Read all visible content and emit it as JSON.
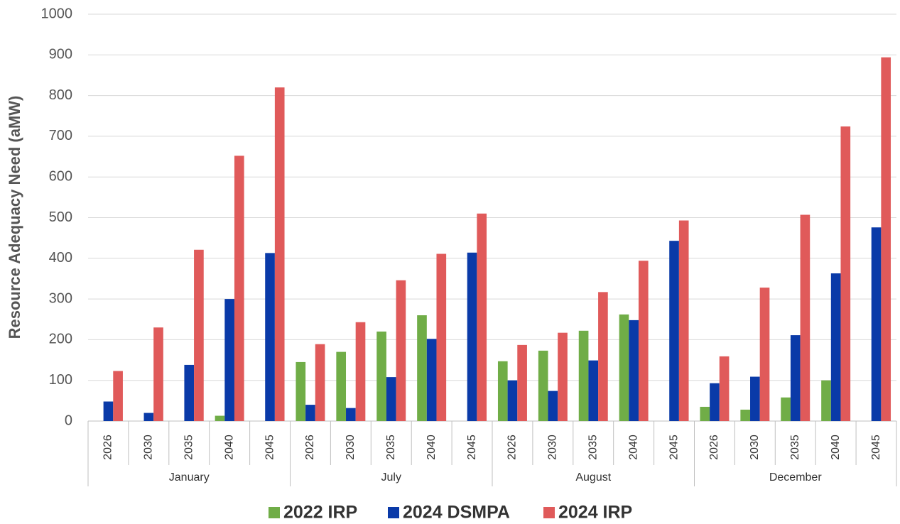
{
  "chart_data": {
    "type": "bar",
    "y_label": "Resource Adequacy Need (aMW)",
    "groups": [
      {
        "name": "January",
        "categories": [
          "2026",
          "2030",
          "2035",
          "2040",
          "2045"
        ]
      },
      {
        "name": "July",
        "categories": [
          "2026",
          "2030",
          "2035",
          "2040",
          "2045"
        ]
      },
      {
        "name": "August",
        "categories": [
          "2026",
          "2030",
          "2035",
          "2040",
          "2045"
        ]
      },
      {
        "name": "December",
        "categories": [
          "2026",
          "2030",
          "2035",
          "2040",
          "2045"
        ]
      }
    ],
    "series": [
      {
        "name": "2022 IRP",
        "color": "#70ad47",
        "values": [
          0,
          0,
          0,
          13,
          0,
          145,
          170,
          220,
          260,
          0,
          147,
          173,
          222,
          262,
          0,
          35,
          28,
          58,
          100,
          0
        ]
      },
      {
        "name": "2024 DSMPA",
        "color": "#0a3aa8",
        "values": [
          48,
          20,
          138,
          300,
          413,
          40,
          32,
          108,
          202,
          414,
          100,
          74,
          149,
          248,
          443,
          93,
          109,
          211,
          363,
          476
        ]
      },
      {
        "name": "2024 IRP",
        "color": "#e05a5a",
        "values": [
          123,
          230,
          421,
          652,
          820,
          189,
          243,
          346,
          411,
          510,
          187,
          217,
          317,
          394,
          493,
          159,
          328,
          507,
          724,
          894
        ]
      }
    ],
    "ylim": [
      0,
      1000
    ],
    "yticks": [
      0,
      100,
      200,
      300,
      400,
      500,
      600,
      700,
      800,
      900,
      1000
    ],
    "grid": true,
    "legend": "bottom"
  }
}
